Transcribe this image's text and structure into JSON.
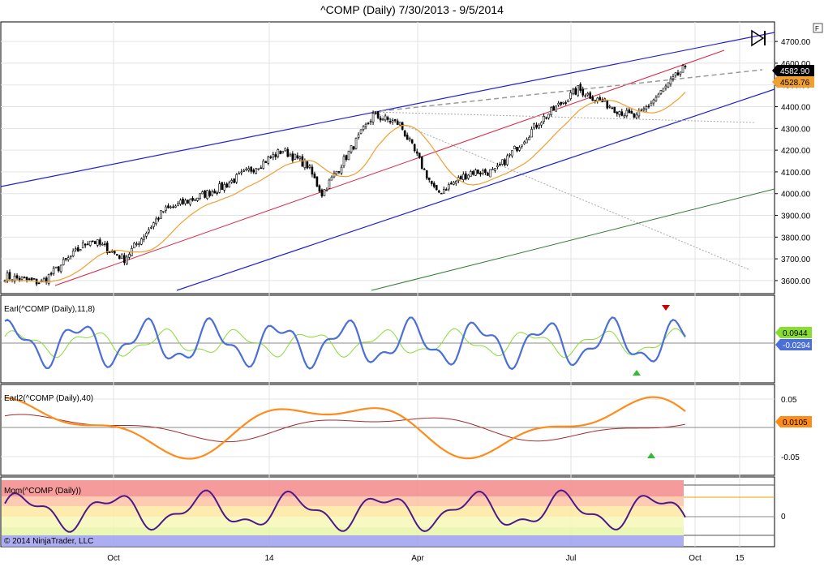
{
  "title": "^COMP (Daily)  7/30/2013 - 9/5/2014",
  "copyright": "© 2014 NinjaTrader, LLC",
  "f_button": "F",
  "x_ticks": [
    "Oct",
    "14",
    "Apr",
    "Jul",
    "Oct",
    "15"
  ],
  "colors": {
    "channel_blue": "#2222cc",
    "fan_red": "#dd2244",
    "green_line": "#2e7d32",
    "ma_orange": "#f0a030",
    "earl_blue": "#4a6fd6",
    "earl_green": "#88dd33",
    "earl2_orange": "#ff8c1a",
    "earl2_darkred": "#a52a2a",
    "mom_purple": "#4b1a8a"
  },
  "chart_data": [
    {
      "type": "candlestick",
      "title": "^COMP (Daily)  7/30/2013 - 9/5/2014",
      "ylim": [
        3540,
        4790
      ],
      "y_ticks": [
        "4700.00",
        "4600.00",
        "4500.00",
        "4400.00",
        "4300.00",
        "4200.00",
        "4100.00",
        "4000.00",
        "3900.00",
        "3800.00",
        "3700.00",
        "3600.00"
      ],
      "price_key_points": [
        [
          "2013-07-30",
          3620
        ],
        [
          "2013-08-20",
          3590
        ],
        [
          "2013-09-18",
          3790
        ],
        [
          "2013-10-08",
          3700
        ],
        [
          "2013-11-01",
          3920
        ],
        [
          "2013-12-05",
          4030
        ],
        [
          "2014-01-10",
          4200
        ],
        [
          "2014-01-24",
          4130
        ],
        [
          "2014-02-03",
          4000
        ],
        [
          "2014-03-05",
          4360
        ],
        [
          "2014-03-20",
          4320
        ],
        [
          "2014-04-11",
          4000
        ],
        [
          "2014-05-01",
          4100
        ],
        [
          "2014-05-15",
          4100
        ],
        [
          "2014-06-10",
          4330
        ],
        [
          "2014-07-03",
          4480
        ],
        [
          "2014-07-31",
          4370
        ],
        [
          "2014-08-07",
          4350
        ],
        [
          "2014-09-05",
          4582.9
        ]
      ],
      "last_price": "4582.90",
      "ma_value": "4528.76",
      "overlays": [
        "upper blue channel line",
        "lower blue channel line",
        "red median line",
        "green parallel line",
        "gray dashed fan lines",
        "orange moving average"
      ]
    },
    {
      "type": "line",
      "label": "Earl(^COMP (Daily),11,8)",
      "series": [
        {
          "name": "Earl",
          "color": "#4a6fd6",
          "last": "-0.0294"
        },
        {
          "name": "Signal",
          "color": "#88dd33",
          "last": "0.0944"
        }
      ],
      "markers": [
        "green up triangle",
        "red down triangle"
      ]
    },
    {
      "type": "line",
      "label": "Earl2(^COMP (Daily),40)",
      "y_ticks": [
        "0.05",
        "-0.05"
      ],
      "series": [
        {
          "name": "Earl2",
          "color": "#ff8c1a",
          "last": "0.0105"
        },
        {
          "name": "Signal",
          "color": "#a52a2a"
        }
      ],
      "markers": [
        "green up triangle"
      ]
    },
    {
      "type": "line",
      "label": "Mom(^COMP (Daily))",
      "y_ticks": [
        "0"
      ],
      "series": [
        {
          "name": "Mom",
          "color": "#4b1a8a"
        }
      ],
      "bands": [
        "#f48a8a",
        "#fbc2a4",
        "#fde9a0",
        "#f7f7b8",
        "#e8f7a8",
        "#9fa0f0"
      ]
    }
  ],
  "labels": {
    "earl": "Earl(^COMP (Daily),11,8)",
    "earl2": "Earl2(^COMP (Daily),40)",
    "mom": "Mom(^COMP (Daily))",
    "last_price": "4582.90",
    "ma_value": "4528.76",
    "earl_val": "-0.0294",
    "earl_sig": "0.0944",
    "earl2_val": "0.0105",
    "earl2_tick_hi": "0.05",
    "earl2_tick_lo": "-0.05",
    "mom_tick": "0"
  }
}
